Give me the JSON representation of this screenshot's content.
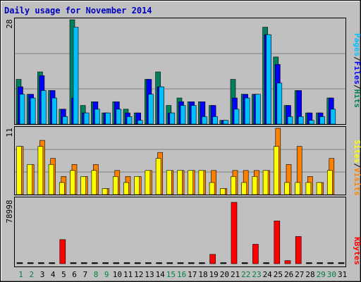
{
  "title": "Daily usage for November 2014",
  "colors": {
    "hits": "#00805c",
    "files": "#0000ff",
    "pages": "#00c0ff",
    "visits": "#ff8000",
    "sites": "#ffff00",
    "kbytes": "#ff0000",
    "weekday_label": "#000000",
    "weekend_label": "#008040",
    "plot_bg": "#c0c0c0",
    "page_bg": "#c0c0c0"
  },
  "legend": {
    "pages": "Pages",
    "files": "Files",
    "hits": "Hits",
    "sep": "/",
    "sites": "Sites",
    "visits": "Visits",
    "kbytes": "KBytes"
  },
  "chart_data": [
    {
      "type": "bar",
      "panel": "hits-files-pages",
      "ymax_label": "28",
      "ylim": [
        0,
        28
      ],
      "categories": [
        "1",
        "2",
        "3",
        "4",
        "5",
        "6",
        "7",
        "8",
        "9",
        "10",
        "11",
        "12",
        "13",
        "14",
        "15",
        "16",
        "17",
        "18",
        "19",
        "20",
        "21",
        "22",
        "23",
        "24",
        "25",
        "26",
        "27",
        "28",
        "29",
        "30",
        "31"
      ],
      "series": [
        {
          "name": "Hits",
          "values": [
            12,
            8,
            14,
            9,
            4,
            28,
            5,
            6,
            3,
            6,
            4,
            3,
            12,
            14,
            5,
            7,
            6,
            6,
            5,
            1,
            12,
            8,
            8,
            26,
            18,
            5,
            9,
            3,
            3,
            7,
            0
          ]
        },
        {
          "name": "Files",
          "values": [
            10,
            8,
            13,
            9,
            4,
            7,
            3,
            6,
            3,
            6,
            3,
            3,
            12,
            10,
            3,
            6,
            6,
            6,
            5,
            1,
            7,
            8,
            8,
            24,
            16,
            5,
            9,
            3,
            3,
            7,
            0
          ]
        },
        {
          "name": "Pages",
          "values": [
            8,
            7,
            9,
            7,
            2,
            26,
            3,
            4,
            3,
            4,
            2,
            1,
            8,
            10,
            3,
            5,
            5,
            2,
            2,
            1,
            4,
            7,
            8,
            24,
            11,
            2,
            2,
            1,
            2,
            4,
            0
          ]
        }
      ]
    },
    {
      "type": "bar",
      "panel": "visits-sites",
      "ymax_label": "11",
      "ylim": [
        0,
        11
      ],
      "categories": [
        "1",
        "2",
        "3",
        "4",
        "5",
        "6",
        "7",
        "8",
        "9",
        "10",
        "11",
        "12",
        "13",
        "14",
        "15",
        "16",
        "17",
        "18",
        "19",
        "20",
        "21",
        "22",
        "23",
        "24",
        "25",
        "26",
        "27",
        "28",
        "29",
        "30",
        "31"
      ],
      "series": [
        {
          "name": "Visits",
          "values": [
            8,
            5,
            9,
            6,
            3,
            5,
            3,
            5,
            1,
            4,
            3,
            3,
            4,
            7,
            4,
            4,
            4,
            4,
            4,
            1,
            4,
            4,
            4,
            4,
            11,
            5,
            8,
            3,
            2,
            6,
            0
          ]
        },
        {
          "name": "Sites",
          "values": [
            8,
            5,
            8,
            5,
            2,
            4,
            3,
            4,
            1,
            3,
            2,
            3,
            4,
            6,
            4,
            4,
            4,
            4,
            2,
            1,
            3,
            2,
            3,
            4,
            8,
            2,
            2,
            2,
            2,
            4,
            0
          ]
        }
      ]
    },
    {
      "type": "bar",
      "panel": "kbytes",
      "ymax_label": "78998",
      "ylim": [
        0,
        78998
      ],
      "categories": [
        "1",
        "2",
        "3",
        "4",
        "5",
        "6",
        "7",
        "8",
        "9",
        "10",
        "11",
        "12",
        "13",
        "14",
        "15",
        "16",
        "17",
        "18",
        "19",
        "20",
        "21",
        "22",
        "23",
        "24",
        "25",
        "26",
        "27",
        "28",
        "29",
        "30",
        "31"
      ],
      "series": [
        {
          "name": "KBytes",
          "values": [
            0,
            0,
            0,
            0,
            31000,
            0,
            0,
            0,
            0,
            0,
            0,
            0,
            0,
            0,
            0,
            0,
            0,
            0,
            12000,
            0,
            78998,
            0,
            25000,
            0,
            55000,
            4000,
            35000,
            0,
            0,
            0,
            0
          ]
        }
      ]
    }
  ],
  "day_labels": [
    "1",
    "2",
    "3",
    "4",
    "5",
    "6",
    "7",
    "8",
    "9",
    "10",
    "11",
    "12",
    "13",
    "14",
    "15",
    "16",
    "17",
    "18",
    "19",
    "20",
    "21",
    "22",
    "23",
    "24",
    "25",
    "26",
    "27",
    "28",
    "29",
    "30",
    "31"
  ],
  "weekend_days": [
    1,
    2,
    8,
    9,
    15,
    16,
    22,
    23,
    29,
    30
  ]
}
